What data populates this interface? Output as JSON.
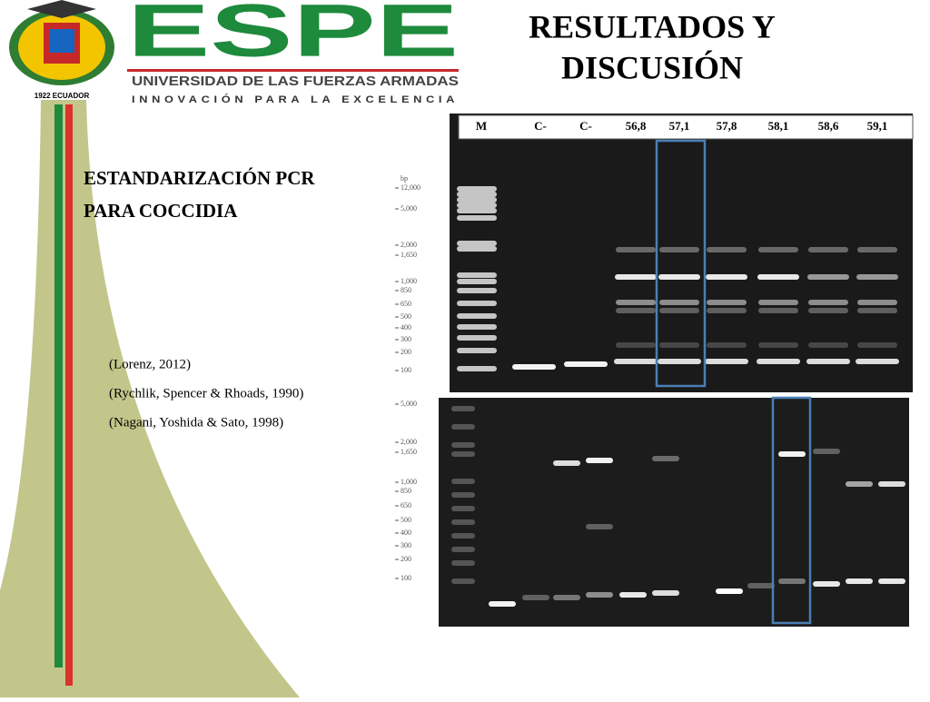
{
  "header": {
    "logo_caption": "1922 ECUADOR",
    "brand": "ESPE",
    "university": "UNIVERSIDAD DE LAS FUERZAS ARMADAS",
    "motto": "INNOVACIÓN PARA LA EXCELENCIA"
  },
  "title": [
    "RESULTADOS Y",
    "DISCUSIÓN"
  ],
  "subtitle": [
    "ESTANDARIZACIÓN PCR",
    "PARA COCCIDIA"
  ],
  "references": [
    "(Lorenz, 2012)",
    "(Rychlik, Spencer & Rhoads, 1990)",
    "(Nagani, Yoshida & Sato, 1998)"
  ],
  "gel_top": {
    "lanes": [
      "M",
      "C-",
      "C-",
      "56,8",
      "57,1",
      "57,8",
      "58,1",
      "58,6",
      "59,1"
    ],
    "unit": "bp",
    "markers": [
      "12,000",
      "5,000",
      "2,000",
      "1,650",
      "1,000",
      "850",
      "650",
      "500",
      "400",
      "300",
      "200",
      "100"
    ]
  },
  "gel_bottom": {
    "markers": [
      "5,000",
      "2,000",
      "1,650",
      "1,000",
      "850",
      "650",
      "500",
      "400",
      "300",
      "200",
      "100"
    ]
  }
}
